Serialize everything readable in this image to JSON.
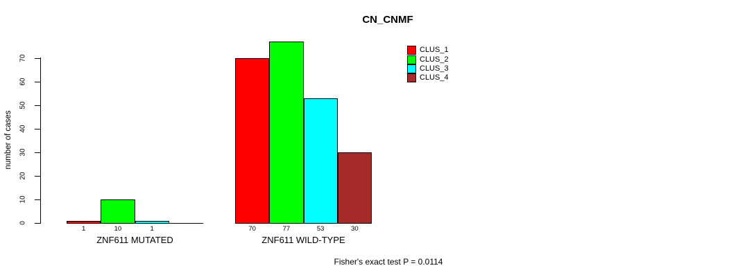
{
  "figure": {
    "title": "CN_CNMF",
    "y_axis_label": "number of cases",
    "caption": "Fisher's exact test P = 0.0114"
  },
  "chart_data": {
    "type": "bar",
    "title": "CN_CNMF",
    "xlabel": "",
    "ylabel": "number of cases",
    "ylim": [
      0,
      70
    ],
    "yticks": [
      0,
      10,
      20,
      30,
      40,
      50,
      60,
      70
    ],
    "grid": false,
    "legend_position": "top-right",
    "categories": [
      "ZNF611 MUTATED",
      "ZNF611 WILD-TYPE"
    ],
    "series": [
      {
        "name": "CLUS_1",
        "color": "#FF0000",
        "values": [
          1,
          70
        ]
      },
      {
        "name": "CLUS_2",
        "color": "#00FF00",
        "values": [
          10,
          77
        ]
      },
      {
        "name": "CLUS_3",
        "color": "#00FFFF",
        "values": [
          1,
          53
        ]
      },
      {
        "name": "CLUS_4",
        "color": "#A52A2A",
        "values": [
          0,
          30
        ]
      }
    ],
    "groups": [
      {
        "label": "ZNF611 MUTATED",
        "values": [
          1,
          10,
          1,
          0
        ],
        "bar_labels": [
          "1",
          "10",
          "1",
          ""
        ]
      },
      {
        "label": "ZNF611 WILD-TYPE",
        "values": [
          70,
          77,
          53,
          30
        ],
        "bar_labels": [
          "70",
          "77",
          "53",
          "30"
        ]
      }
    ],
    "annotation": "Fisher's exact test P = 0.0114"
  }
}
